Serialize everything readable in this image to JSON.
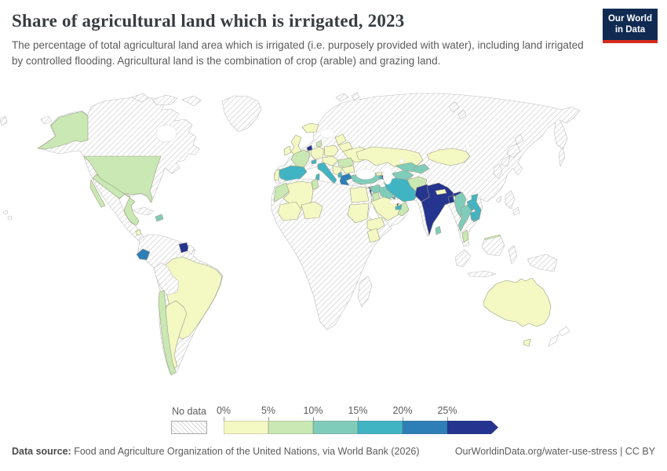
{
  "header": {
    "title": "Share of agricultural land which is irrigated, 2023",
    "subtitle": "The percentage of total agricultural land area which is irrigated (i.e. purposely provided with water), including land irrigated by controlled flooding. Agricultural land is the combination of crop (arable) and grazing land.",
    "logo": {
      "line1": "Our World",
      "line2": "in Data",
      "bg": "#102a52",
      "accent": "#d52b1e"
    }
  },
  "chart_data": {
    "type": "choropleth_map",
    "title": "Share of agricultural land which is irrigated, 2023",
    "year": "2023",
    "metric": "Share of agricultural land which is irrigated (%)",
    "legend": {
      "position": "bottom",
      "no_data_label": "No data",
      "no_data_style": "diagonal-hatch",
      "tick_labels": [
        "0%",
        "5%",
        "10%",
        "15%",
        "20%",
        "25%"
      ],
      "buckets": [
        "0-5%",
        "5-10%",
        "10-15%",
        "15-20%",
        "20-25%",
        "25%+"
      ],
      "bucket_colors": [
        "#f4f8c3",
        "#c9e8b3",
        "#80ccba",
        "#41b4c4",
        "#2e7eb8",
        "#24348f"
      ]
    },
    "regions": {
      "north-america-base": "no-data",
      "canadian-arctic-islands": "no-data",
      "greenland": "no-data",
      "wrangel-island": "no-data",
      "chukotka-wrap": "no-data",
      "svalbard": "no-data",
      "russian-arctic-islands": "no-data",
      "eurasia-base": "no-data",
      "africa-base": "no-data",
      "south-america-base": "no-data",
      "madagascar": "no-data",
      "peru-bolivia": "no-data",
      "cuba": "no-data",
      "japan": "no-data",
      "south-korea": "no-data",
      "taiwan": "no-data",
      "philippines": "no-data",
      "sakhalin": "no-data",
      "indonesia-sumatra": "no-data",
      "indonesia-borneo": "no-data",
      "indonesia-java": "no-data",
      "indonesia-sulawesi": "no-data",
      "new-guinea": "no-data",
      "new-zealand": "outline",
      "french-guiana": "outline",
      "hawaii": "outline",
      "alaska": "5-10%",
      "united-states": "5-10%",
      "mexico": "5-10%",
      "costa-rica": "0-5%",
      "dominican-republic": "10-15%",
      "ecuador": "20-25%",
      "suriname": "25%+",
      "brazil": "0-5%",
      "chile": "5-10%",
      "argentina": "0-5%",
      "iceland": "0-5%",
      "united-kingdom": "0-5%",
      "ireland": "0-5%",
      "denmark": "5-10%",
      "netherlands": "25%+",
      "belgium": "0-5%",
      "germany": "0-5%",
      "poland": "0-5%",
      "baltic-states": "0-5%",
      "belarus": "0-5%",
      "ukraine": "0-5%",
      "central-europe": "0-5%",
      "romania": "5-10%",
      "balkans": "0-5%",
      "bulgaria": "0-5%",
      "france": "5-10%",
      "switzerland": "15-20%",
      "spain": "15-20%",
      "portugal": "0-5%",
      "italy": "15-20%",
      "sicily": "15-20%",
      "sardinia": "15-20%",
      "albania": "15-20%",
      "greece": "20-25%",
      "crete": "20-25%",
      "turkey": "10-15%",
      "cyprus": "25%+",
      "syria": "10-15%",
      "israel": "25%+",
      "jordan": "5-10%",
      "iraq": "10-15%",
      "saudi-arabia": "0-5%",
      "oman": "5-10%",
      "uae": "15-20%",
      "kuwait": "15-20%",
      "qatar": "25%+",
      "iran": "15-20%",
      "azerbaijan": "25%+",
      "armenia": "15-20%",
      "georgia": "0-5%",
      "kazakhstan": "0-5%",
      "turkmenistan": "10-15%",
      "uzbekistan": "10-15%",
      "kyrgyzstan-tajikistan": "10-15%",
      "afghanistan": "5-10%",
      "pakistan": "25%+",
      "india": "25%+",
      "india-northeast": "25%+",
      "nepal": "0-5%",
      "bangladesh": "25%+",
      "sri-lanka": "10-15%",
      "myanmar": "10-15%",
      "thailand": "10-15%",
      "laos": "15-20%",
      "vietnam": "15-20%",
      "cambodia": "15-20%",
      "malaysia-peninsula": "5-10%",
      "malaysia-borneo": "5-10%",
      "mongolia": "0-5%",
      "australia": "0-5%",
      "tasmania": "0-5%",
      "morocco": "5-10%",
      "tunisia": "5-10%",
      "algeria": "0-5%",
      "egypt": "0-5%",
      "mali": "0-5%",
      "niger": "0-5%",
      "sudan": "0-5%",
      "ethiopia": "0-5%",
      "kenya": "0-5%"
    }
  },
  "footer": {
    "source_label": "Data source:",
    "source_text": "Food and Agriculture Organization of the United Nations, via World Bank (2026)",
    "attribution": "OurWorldinData.org/water-use-stress | CC BY"
  }
}
